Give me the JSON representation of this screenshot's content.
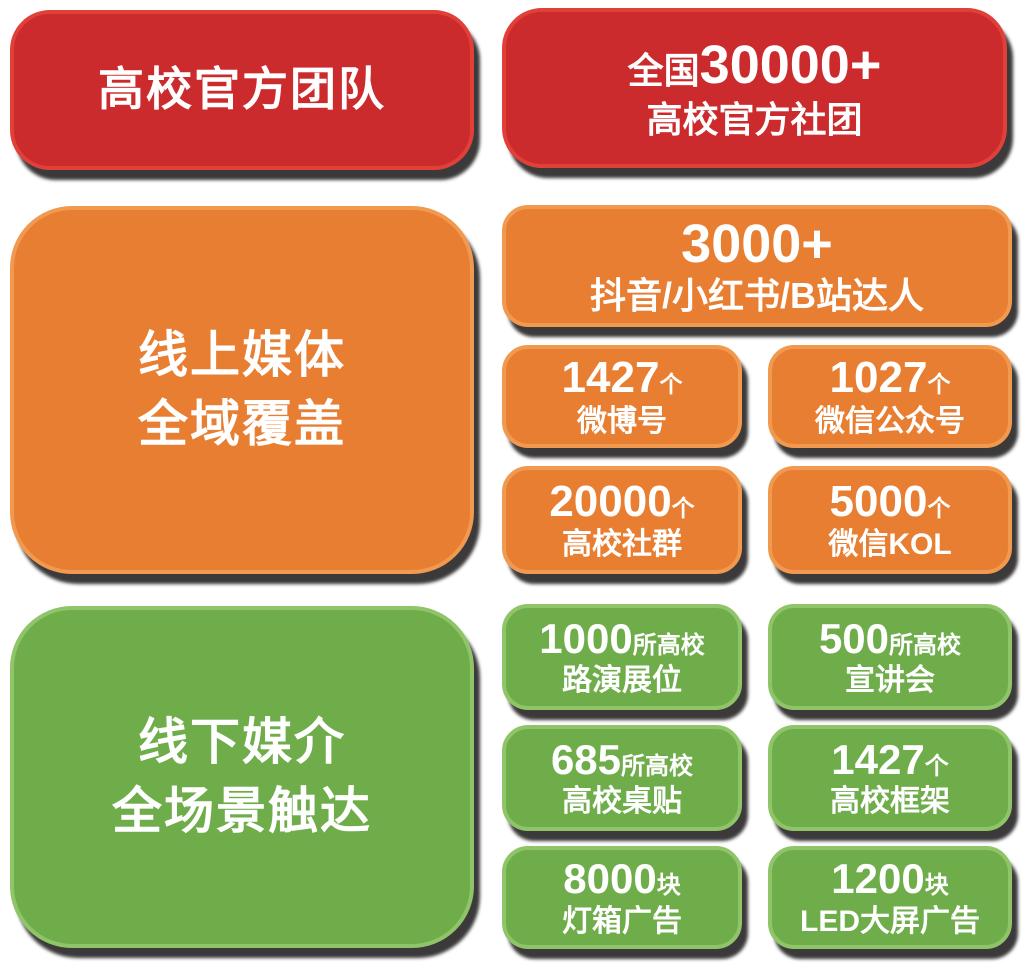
{
  "colors": {
    "red_fill": "#cc2b2e",
    "red_border": "#e04038",
    "orange_fill": "#e87e31",
    "orange_border": "#f0994f",
    "green_fill": "#6fad4b",
    "green_border": "#8fc468",
    "text": "#ffffff"
  },
  "team": {
    "title": "高校官方团队",
    "stat_prefix": "全国",
    "stat_number": "30000+",
    "stat_label": "高校官方社团"
  },
  "online": {
    "title_line1": "线上媒体",
    "title_line2": "全域覆盖",
    "hero_number": "3000+",
    "hero_label": "抖音/小红书/B站达人",
    "stats": [
      {
        "number": "1427",
        "unit": "个",
        "label": "微博号"
      },
      {
        "number": "1027",
        "unit": "个",
        "label": "微信公众号"
      },
      {
        "number": "20000",
        "unit": "个",
        "label": "高校社群"
      },
      {
        "number": "5000",
        "unit": "个",
        "label": "微信KOL"
      }
    ]
  },
  "offline": {
    "title_line1": "线下媒介",
    "title_line2": "全场景触达",
    "stats": [
      {
        "number": "1000",
        "unit": "所高校",
        "label": "路演展位"
      },
      {
        "number": "500",
        "unit": "所高校",
        "label": "宣讲会"
      },
      {
        "number": "685",
        "unit": "所高校",
        "label": "高校桌贴"
      },
      {
        "number": "1427",
        "unit": "个",
        "label": "高校框架"
      },
      {
        "number": "8000",
        "unit": "块",
        "label": "灯箱广告"
      },
      {
        "number": "1200",
        "unit": "块",
        "label": "LED大屏广告"
      }
    ]
  }
}
